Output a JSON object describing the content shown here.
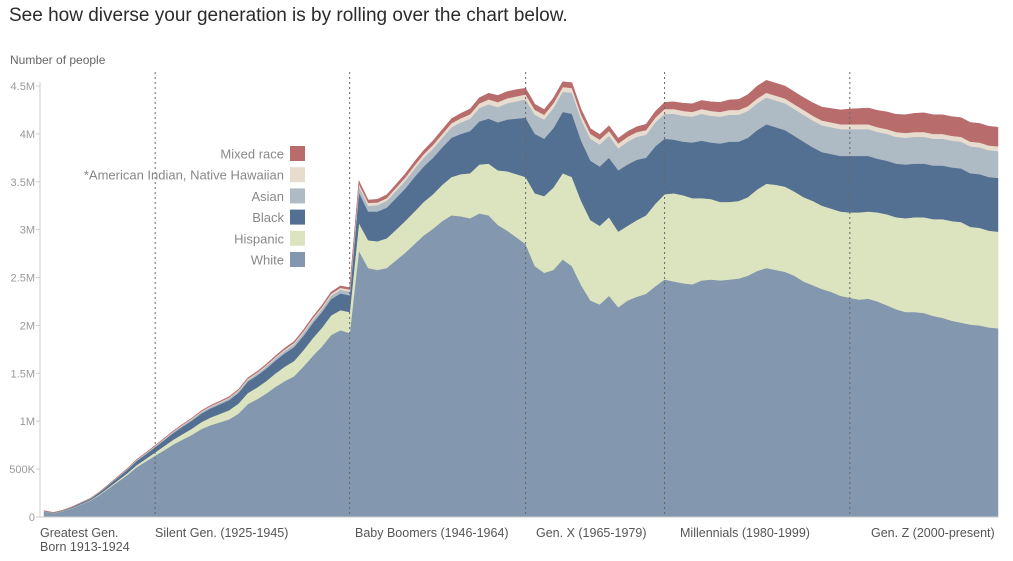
{
  "headline": "See how diverse your generation is by rolling over the chart below.",
  "colors": {
    "White": "#8397ae",
    "Hispanic": "#dce4bf",
    "Black": "#536f92",
    "Asian": "#aebac4",
    "Native": "#e8dccf",
    "Mixed": "#b86c6c"
  },
  "chart_data": {
    "type": "area",
    "stacked": true,
    "title": "",
    "xlabel": "",
    "ylabel": "Number of people",
    "xlim": [
      1913,
      2016
    ],
    "ylim": [
      0,
      4500000
    ],
    "y_ticks": [
      0,
      500000,
      1000000,
      1500000,
      2000000,
      2500000,
      3000000,
      3500000,
      4000000,
      4500000
    ],
    "y_tick_labels": [
      "0",
      "500K",
      "1M",
      "1.5M",
      "2M",
      "2.5M",
      "3M",
      "3.5M",
      "4M",
      "4.5M"
    ],
    "x": [
      1913,
      1914,
      1915,
      1916,
      1917,
      1918,
      1919,
      1920,
      1921,
      1922,
      1923,
      1924,
      1925,
      1926,
      1927,
      1928,
      1929,
      1930,
      1931,
      1932,
      1933,
      1934,
      1935,
      1936,
      1937,
      1938,
      1939,
      1940,
      1941,
      1942,
      1943,
      1944,
      1945,
      1946,
      1947,
      1948,
      1949,
      1950,
      1951,
      1952,
      1953,
      1954,
      1955,
      1956,
      1957,
      1958,
      1959,
      1960,
      1961,
      1962,
      1963,
      1964,
      1965,
      1966,
      1967,
      1968,
      1969,
      1970,
      1971,
      1972,
      1973,
      1974,
      1975,
      1976,
      1977,
      1978,
      1979,
      1980,
      1981,
      1982,
      1983,
      1984,
      1985,
      1986,
      1987,
      1988,
      1989,
      1990,
      1991,
      1992,
      1993,
      1994,
      1995,
      1996,
      1997,
      1998,
      1999,
      2000,
      2001,
      2002,
      2003,
      2004,
      2005,
      2006,
      2007,
      2008,
      2009,
      2010,
      2011,
      2012,
      2013,
      2014,
      2015,
      2016
    ],
    "series": [
      {
        "name": "White",
        "color_key": "White",
        "values": [
          60000,
          40000,
          60000,
          90000,
          130000,
          170000,
          230000,
          300000,
          370000,
          440000,
          520000,
          580000,
          640000,
          700000,
          760000,
          810000,
          860000,
          920000,
          960000,
          990000,
          1020000,
          1080000,
          1180000,
          1230000,
          1290000,
          1360000,
          1420000,
          1470000,
          1570000,
          1680000,
          1780000,
          1900000,
          1950000,
          1920000,
          2780000,
          2600000,
          2580000,
          2600000,
          2680000,
          2760000,
          2850000,
          2940000,
          3010000,
          3090000,
          3150000,
          3140000,
          3120000,
          3170000,
          3150000,
          3050000,
          2990000,
          2920000,
          2850000,
          2620000,
          2550000,
          2580000,
          2690000,
          2620000,
          2420000,
          2260000,
          2220000,
          2310000,
          2190000,
          2260000,
          2300000,
          2330000,
          2410000,
          2480000,
          2460000,
          2440000,
          2430000,
          2470000,
          2480000,
          2470000,
          2480000,
          2490000,
          2520000,
          2570000,
          2600000,
          2580000,
          2560000,
          2520000,
          2460000,
          2420000,
          2380000,
          2350000,
          2310000,
          2290000,
          2270000,
          2280000,
          2250000,
          2210000,
          2170000,
          2140000,
          2140000,
          2130000,
          2100000,
          2080000,
          2050000,
          2030000,
          2010000,
          2000000,
          1980000,
          1970000
        ]
      },
      {
        "name": "Hispanic",
        "color_key": "Hispanic",
        "values": [
          2000,
          2000,
          3000,
          4000,
          5000,
          6000,
          8000,
          10000,
          14000,
          18000,
          22000,
          28000,
          35000,
          42000,
          50000,
          58000,
          65000,
          72000,
          80000,
          88000,
          96000,
          105000,
          115000,
          122000,
          130000,
          140000,
          150000,
          160000,
          170000,
          185000,
          195000,
          205000,
          210000,
          220000,
          290000,
          290000,
          300000,
          310000,
          320000,
          330000,
          340000,
          350000,
          360000,
          380000,
          400000,
          440000,
          470000,
          510000,
          540000,
          570000,
          620000,
          660000,
          700000,
          760000,
          800000,
          860000,
          900000,
          930000,
          880000,
          840000,
          820000,
          820000,
          790000,
          780000,
          800000,
          820000,
          860000,
          890000,
          920000,
          920000,
          900000,
          860000,
          840000,
          820000,
          810000,
          810000,
          820000,
          850000,
          880000,
          890000,
          890000,
          880000,
          880000,
          880000,
          870000,
          870000,
          880000,
          890000,
          910000,
          910000,
          930000,
          950000,
          960000,
          980000,
          990000,
          1000000,
          1010000,
          1030000,
          1040000,
          1050000,
          1020000,
          1020000,
          1010000,
          1010000
        ]
      },
      {
        "name": "Black",
        "color_key": "Black",
        "values": [
          3000,
          3000,
          5000,
          8000,
          11000,
          14000,
          19000,
          25000,
          31000,
          37000,
          43000,
          48000,
          54000,
          62000,
          70000,
          78000,
          85000,
          90000,
          95000,
          100000,
          106000,
          112000,
          120000,
          125000,
          130000,
          135000,
          140000,
          145000,
          150000,
          158000,
          165000,
          170000,
          175000,
          175000,
          320000,
          300000,
          310000,
          320000,
          330000,
          340000,
          360000,
          370000,
          380000,
          390000,
          410000,
          420000,
          440000,
          450000,
          470000,
          500000,
          540000,
          580000,
          620000,
          620000,
          600000,
          620000,
          640000,
          660000,
          630000,
          620000,
          620000,
          620000,
          640000,
          640000,
          630000,
          600000,
          600000,
          580000,
          560000,
          560000,
          580000,
          600000,
          590000,
          610000,
          630000,
          620000,
          620000,
          620000,
          620000,
          600000,
          590000,
          580000,
          580000,
          560000,
          560000,
          570000,
          580000,
          590000,
          590000,
          580000,
          560000,
          560000,
          560000,
          560000,
          560000,
          560000,
          560000,
          560000,
          560000,
          560000,
          560000,
          560000,
          560000,
          560000
        ]
      },
      {
        "name": "Asian",
        "color_key": "Asian",
        "values": [
          500,
          500,
          1000,
          1500,
          2000,
          2500,
          3000,
          4000,
          5000,
          6000,
          7000,
          8000,
          9000,
          10000,
          11000,
          12000,
          13000,
          14000,
          15000,
          16000,
          17000,
          18000,
          19000,
          20000,
          22000,
          24000,
          26000,
          28000,
          30000,
          32000,
          34000,
          36000,
          38000,
          40000,
          60000,
          60000,
          65000,
          70000,
          75000,
          80000,
          85000,
          90000,
          95000,
          100000,
          110000,
          120000,
          130000,
          140000,
          150000,
          160000,
          170000,
          180000,
          190000,
          200000,
          200000,
          210000,
          210000,
          220000,
          220000,
          230000,
          230000,
          230000,
          230000,
          240000,
          240000,
          240000,
          250000,
          260000,
          270000,
          270000,
          270000,
          280000,
          280000,
          280000,
          280000,
          280000,
          280000,
          280000,
          280000,
          280000,
          280000,
          280000,
          280000,
          280000,
          280000,
          280000,
          280000,
          280000,
          280000,
          280000,
          280000,
          280000,
          280000,
          280000,
          280000,
          280000,
          280000,
          280000,
          280000,
          280000,
          280000,
          280000,
          280000,
          280000
        ]
      },
      {
        "name": "*American Indian, Native Hawaiian",
        "color_key": "Native",
        "values": [
          500,
          500,
          500,
          1000,
          1000,
          1500,
          2000,
          2500,
          3000,
          3500,
          4000,
          4500,
          5000,
          5500,
          6000,
          6500,
          7000,
          7500,
          8000,
          8500,
          9000,
          9500,
          10000,
          11000,
          12000,
          13000,
          14000,
          15000,
          16000,
          17000,
          18000,
          19000,
          20000,
          20000,
          30000,
          30000,
          30000,
          30000,
          32000,
          34000,
          36000,
          38000,
          40000,
          40000,
          42000,
          44000,
          46000,
          48000,
          50000,
          52000,
          52000,
          52000,
          52000,
          50000,
          50000,
          50000,
          50000,
          50000,
          50000,
          50000,
          50000,
          50000,
          50000,
          50000,
          50000,
          50000,
          50000,
          50000,
          50000,
          50000,
          50000,
          50000,
          50000,
          50000,
          50000,
          50000,
          50000,
          50000,
          50000,
          50000,
          50000,
          50000,
          50000,
          50000,
          50000,
          50000,
          50000,
          50000,
          50000,
          50000,
          50000,
          50000,
          50000,
          50000,
          50000,
          50000,
          50000,
          50000,
          50000,
          50000,
          50000,
          50000,
          50000,
          50000
        ]
      },
      {
        "name": "Mixed race",
        "color_key": "Mixed",
        "values": [
          500,
          500,
          500,
          1000,
          1000,
          1500,
          2000,
          2500,
          3000,
          3500,
          4000,
          4500,
          5000,
          5500,
          6000,
          6500,
          7000,
          7500,
          8000,
          8500,
          9000,
          9500,
          10000,
          11000,
          12000,
          13000,
          14000,
          15000,
          16000,
          17000,
          18000,
          19000,
          20000,
          20000,
          30000,
          30000,
          32000,
          34000,
          36000,
          38000,
          40000,
          42000,
          44000,
          46000,
          48000,
          50000,
          55000,
          60000,
          65000,
          70000,
          70000,
          70000,
          65000,
          60000,
          55000,
          55000,
          55000,
          55000,
          55000,
          55000,
          55000,
          55000,
          55000,
          55000,
          55000,
          60000,
          65000,
          70000,
          75000,
          80000,
          85000,
          90000,
          95000,
          100000,
          105000,
          110000,
          120000,
          130000,
          130000,
          130000,
          130000,
          130000,
          130000,
          135000,
          140000,
          145000,
          150000,
          160000,
          165000,
          170000,
          175000,
          180000,
          185000,
          190000,
          195000,
          200000,
          200000,
          200000,
          200000,
          200000,
          200000,
          200000,
          200000,
          200000
        ]
      }
    ],
    "legend": {
      "placement": "left, upper area",
      "entries": [
        {
          "label": "Mixed race",
          "color_key": "Mixed"
        },
        {
          "label": "*American Indian, Native Hawaiian",
          "color_key": "Native"
        },
        {
          "label": "Asian",
          "color_key": "Asian"
        },
        {
          "label": "Black",
          "color_key": "Black"
        },
        {
          "label": "Hispanic",
          "color_key": "Hispanic"
        },
        {
          "label": "White",
          "color_key": "White"
        }
      ]
    },
    "generations": [
      {
        "label": "Greatest Gen.",
        "label2": "Born 1913-1924",
        "start": 1913
      },
      {
        "label": "Silent Gen. (1925-1945)",
        "start": 1925
      },
      {
        "label": "Baby Boomers (1946-1964)",
        "start": 1946
      },
      {
        "label": "Gen. X (1965-1979)",
        "start": 1965
      },
      {
        "label": "Millennials (1980-1999)",
        "start": 1980
      },
      {
        "label": "Gen. Z (2000-present)",
        "start": 2000
      }
    ],
    "generation_dividers": [
      1925,
      1946,
      1965,
      1980,
      2000
    ],
    "grid": false
  }
}
